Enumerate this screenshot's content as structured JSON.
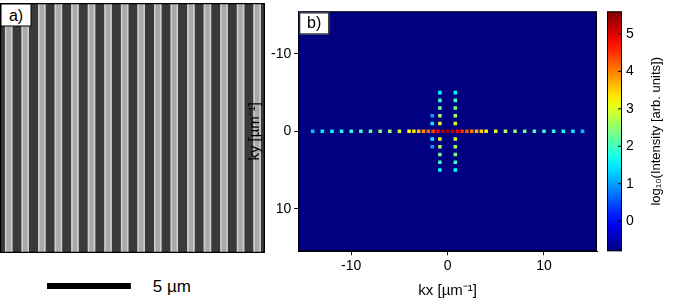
{
  "panel_a": {
    "label": "a)",
    "stripes": 16,
    "field_width_um": 15.8,
    "scale_bar": {
      "length_um": 5,
      "label": "5 µm"
    }
  },
  "chart_data": {
    "type": "scatter",
    "panel_label": "b)",
    "x_label": "kx [µm⁻¹]",
    "y_label": "ky [µm⁻¹]",
    "xlim": [
      -15.5,
      15.5
    ],
    "xticks": [
      -10,
      0,
      10
    ],
    "ylim": [
      15.5,
      -15.5
    ],
    "yticks": [
      -10,
      0,
      10
    ],
    "grid": false,
    "x": [
      -14,
      -13,
      -12,
      -11,
      -10,
      -9,
      -8,
      -7,
      -6,
      -5,
      -4,
      -3.5,
      -3,
      -2.5,
      -2,
      -1.5,
      -1,
      -0.5,
      0,
      0.5,
      1,
      1.5,
      2,
      2.5,
      3,
      3.5,
      4,
      5,
      6,
      7,
      8,
      9,
      10,
      11,
      12,
      13,
      14,
      -0.8,
      -0.8,
      -0.8,
      -0.8,
      -0.8,
      -0.8,
      -0.8,
      -0.8,
      -0.8,
      -0.8,
      0.8,
      0.8,
      0.8,
      0.8,
      0.8,
      0.8,
      0.8,
      0.8,
      0.8,
      0.8,
      -1.6,
      -1.6,
      -1.6,
      -1.6
    ],
    "y": [
      0,
      0,
      0,
      0,
      0,
      0,
      0,
      0,
      0,
      0,
      0,
      0,
      0,
      0,
      0,
      0,
      0,
      0,
      0,
      0,
      0,
      0,
      0,
      0,
      0,
      0,
      0,
      0,
      0,
      0,
      0,
      0,
      0,
      0,
      0,
      0,
      0,
      -5,
      -4,
      -3,
      -2,
      -1,
      1,
      2,
      3,
      4,
      5,
      -5,
      -4,
      -3,
      -2,
      -1,
      1,
      2,
      3,
      4,
      5,
      -2,
      -1,
      1,
      2
    ],
    "intensity": [
      1.2,
      1.5,
      1.6,
      1.8,
      1.9,
      2.0,
      2.2,
      2.4,
      2.6,
      2.9,
      3.2,
      3.4,
      3.6,
      3.9,
      4.2,
      4.4,
      4.8,
      5.2,
      5.5,
      5.2,
      4.9,
      4.5,
      4.3,
      4.0,
      3.7,
      3.5,
      3.3,
      3.0,
      2.7,
      2.5,
      2.3,
      2.1,
      2.0,
      1.8,
      1.7,
      1.5,
      1.2,
      1.6,
      2.0,
      2.3,
      2.6,
      3.0,
      3.0,
      2.6,
      2.3,
      2.0,
      1.6,
      1.6,
      2.0,
      2.3,
      2.6,
      3.0,
      3.0,
      2.6,
      2.3,
      2.0,
      1.6,
      1.0,
      1.5,
      1.5,
      1.0
    ],
    "colorbar": {
      "range": [
        -0.8,
        5.6
      ],
      "ticks": [
        0,
        1,
        2,
        3,
        4,
        5
      ],
      "label": "log₁₀(Intensity [arb. units])"
    }
  }
}
